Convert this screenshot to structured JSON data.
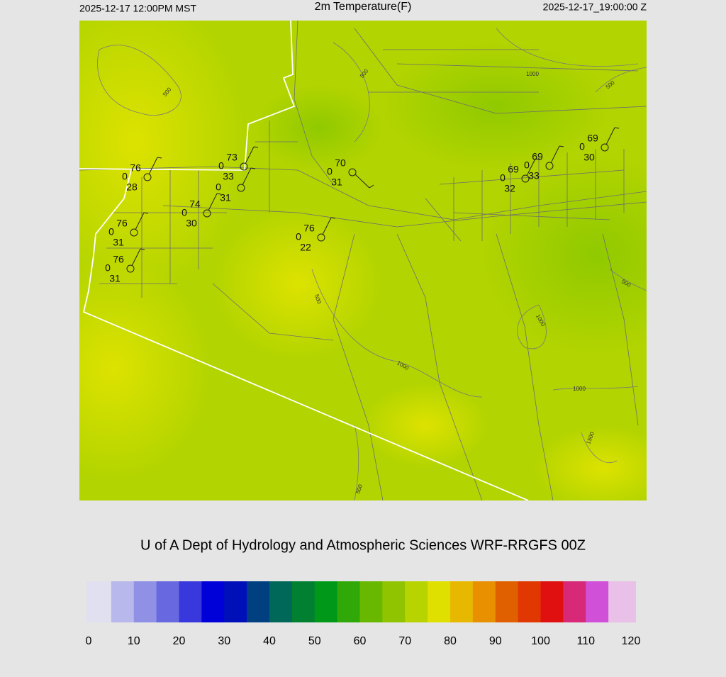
{
  "header": {
    "local_time": "2025-12-17 12:00PM MST",
    "title": "2m Temperature(F)",
    "utc_time": "2025-12-17_19:00:00 Z"
  },
  "map": {
    "stations": [
      {
        "temp": 76,
        "wind": 0,
        "dewpoint": 28
      },
      {
        "temp": 73,
        "wind": 0,
        "dewpoint": 33
      },
      {
        "wind": 0,
        "dewpoint": 31
      },
      {
        "temp": 74,
        "wind": 0,
        "dewpoint": 30
      },
      {
        "temp": 76,
        "wind": 0,
        "dewpoint": 31
      },
      {
        "temp": 76,
        "wind": 0,
        "dewpoint": 31
      },
      {
        "temp": 70,
        "wind": 0,
        "dewpoint": 31
      },
      {
        "temp": 76,
        "wind": 0,
        "dewpoint": 22
      },
      {
        "temp": 69,
        "wind": 0,
        "dewpoint": 32
      },
      {
        "temp": 69,
        "wind": 0,
        "dewpoint": 33
      },
      {
        "temp": 69,
        "wind": 0,
        "dewpoint": 30
      }
    ],
    "contour_labels": [
      "500",
      "500",
      "1000",
      "500",
      "500",
      "500",
      "1000",
      "1000",
      "1000",
      "1500",
      "500"
    ]
  },
  "footer": "U of A Dept of Hydrology and Atmospheric Sciences WRF-RRGFS 00Z",
  "colorbar": {
    "lim": [
      0,
      120
    ],
    "ticks": [
      0,
      10,
      20,
      30,
      40,
      50,
      60,
      70,
      80,
      90,
      100,
      110,
      120
    ],
    "colors": [
      "#e0e0f0",
      "#b8b8ec",
      "#9090e4",
      "#6868e0",
      "#3838dc",
      "#0000d8",
      "#0010b8",
      "#004080",
      "#006858",
      "#008030",
      "#009818",
      "#30a808",
      "#68b800",
      "#90c400",
      "#b8d400",
      "#e0e000",
      "#e8b800",
      "#e89000",
      "#e06000",
      "#e03800",
      "#e01010",
      "#d82878",
      "#d050d8",
      "#e8c0e8"
    ]
  }
}
